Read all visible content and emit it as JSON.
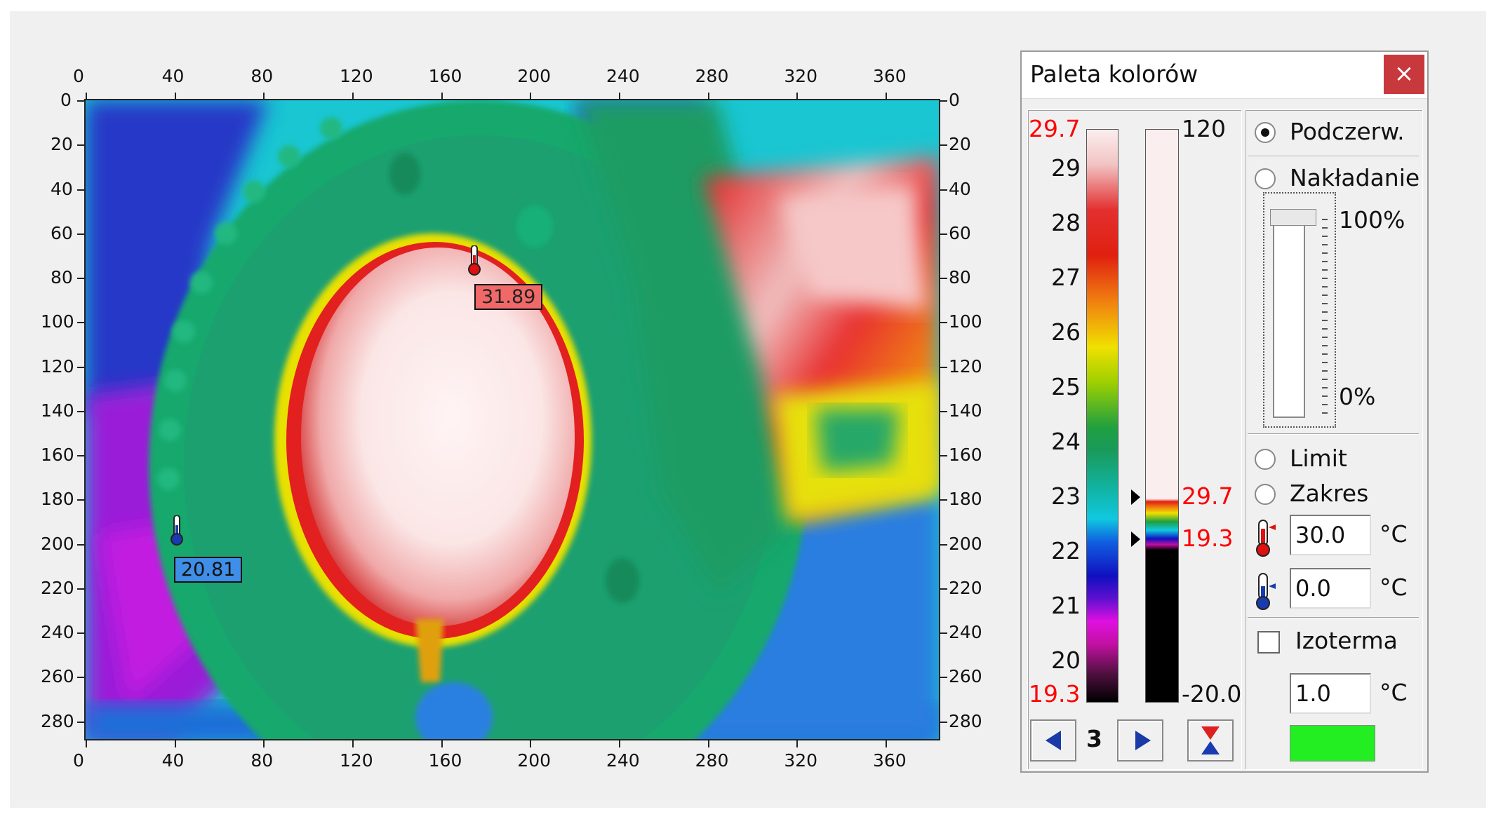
{
  "image": {
    "x_ticks": [
      "0",
      "40",
      "80",
      "120",
      "160",
      "200",
      "240",
      "280",
      "320",
      "360"
    ],
    "y_ticks": [
      "0",
      "20",
      "40",
      "60",
      "80",
      "100",
      "120",
      "140",
      "160",
      "180",
      "200",
      "220",
      "240",
      "260",
      "280"
    ],
    "markers": {
      "hot": {
        "value": "31.89",
        "color": "#f06868"
      },
      "cold": {
        "value": "20.81",
        "color": "#3f8fe8"
      }
    }
  },
  "panel": {
    "title": "Paleta kolorów",
    "close": "×",
    "scale": {
      "max": "29.7",
      "min": "19.3",
      "labels": [
        "29",
        "28",
        "27",
        "26",
        "25",
        "24",
        "23",
        "22",
        "21",
        "20"
      ],
      "range_top": "120",
      "range_bottom": "-20.0",
      "range_max_marker": "29.7",
      "range_min_marker": "19.3"
    },
    "palette_number": "3",
    "modes": {
      "infrared": "Podczerw.",
      "overlay": "Nakładanie",
      "overlay_max": "100%",
      "overlay_min": "0%",
      "limit": "Limit",
      "range": "Zakres"
    },
    "upper_temp": "30.0",
    "lower_temp": "0.0",
    "unit": "°C",
    "isotherm": {
      "label": "Izoterma",
      "value": "1.0",
      "color": "#22ee22"
    }
  }
}
